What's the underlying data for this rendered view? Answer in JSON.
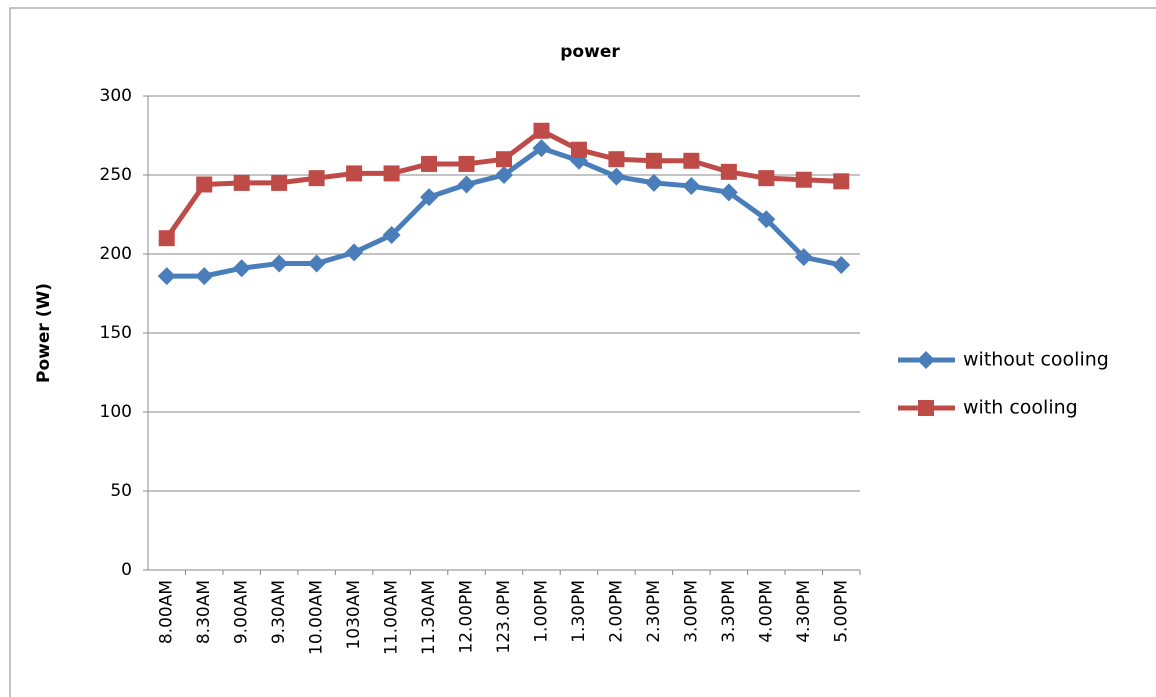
{
  "chart_data": {
    "type": "line",
    "title": "power",
    "y_label": "Power (W)",
    "categories": [
      "8.00AM",
      "8.30AM",
      "9.00AM",
      "9.30AM",
      "10.00AM",
      "1030AM",
      "11.00AM",
      "11.30AM",
      "12.00PM",
      "123.0PM",
      "1.00PM",
      "1.30PM",
      "2.00PM",
      "2.30PM",
      "3.00PM",
      "3.30PM",
      "4.00PM",
      "4.30PM",
      "5.00PM"
    ],
    "series": [
      {
        "name": "without cooling",
        "color": "#4a7ebb",
        "marker": "diamond",
        "values": [
          186,
          186,
          191,
          194,
          194,
          201,
          212,
          236,
          244,
          250,
          267,
          259,
          249,
          245,
          243,
          239,
          222,
          198,
          193
        ]
      },
      {
        "name": "with cooling",
        "color": "#be4b48",
        "marker": "square",
        "values": [
          210,
          244,
          245,
          245,
          248,
          251,
          251,
          257,
          257,
          260,
          278,
          266,
          260,
          259,
          259,
          252,
          248,
          247,
          246
        ]
      }
    ],
    "ylim": [
      0,
      300
    ],
    "yticks": [
      0,
      50,
      100,
      150,
      200,
      250,
      300
    ],
    "grid": true,
    "legend": "right"
  }
}
